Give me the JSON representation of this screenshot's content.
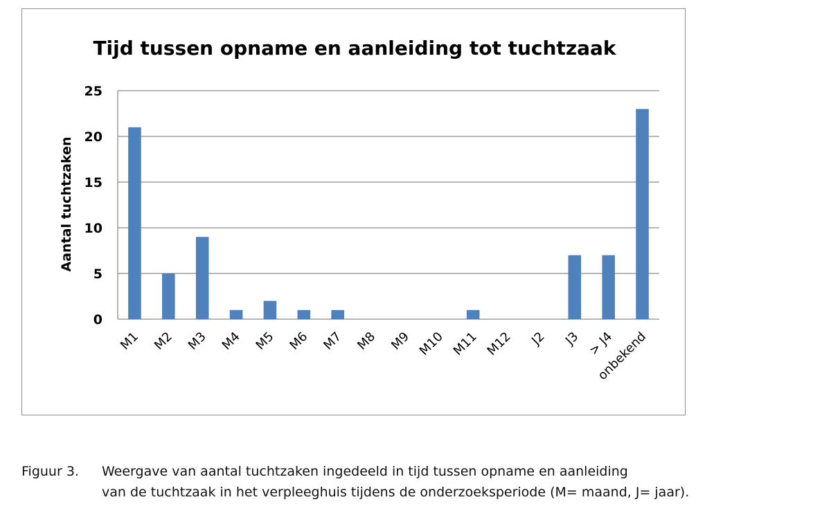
{
  "chart_data": {
    "type": "bar",
    "title": "Tijd tussen opname en aanleiding tot tuchtzaak",
    "xlabel": "",
    "ylabel": "Aantal tuchtzaken",
    "categories": [
      "M1",
      "M2",
      "M3",
      "M4",
      "M5",
      "M6",
      "M7",
      "M8",
      "M9",
      "M10",
      "M11",
      "M12",
      "J2",
      "J3",
      "> J4",
      "onbekend"
    ],
    "values": [
      21,
      5,
      9,
      1,
      2,
      1,
      1,
      0,
      0,
      0,
      1,
      0,
      0,
      7,
      7,
      23
    ],
    "ylim": [
      0,
      25
    ],
    "yticks": [
      0,
      5,
      10,
      15,
      20,
      25
    ],
    "grid": true,
    "legend": "none",
    "bar_color": "#4f81bd",
    "grid_color": "#8c8c8c"
  },
  "caption": {
    "label": "Figuur 3.",
    "line1": "Weergave van aantal tuchtzaken ingedeeld in tijd tussen opname en aanleiding",
    "line2": "van de tuchtzaak in het verpleeghuis tijdens de onderzoeksperiode (M= maand, J= jaar)."
  }
}
